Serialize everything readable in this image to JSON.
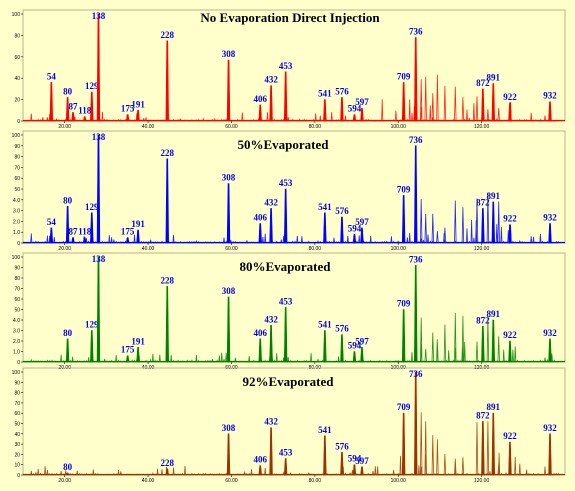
{
  "chart_data": {
    "type": "line",
    "panels": [
      {
        "title": "No Evaporation Direct Injection",
        "color": "#ff0000",
        "ylim": [
          0,
          100
        ],
        "yticks": [
          "0",
          "20",
          "40",
          "60",
          "80",
          "100"
        ],
        "peaks": [
          {
            "label": "54",
            "x": 16.8,
            "y": 36
          },
          {
            "label": "80",
            "x": 20.7,
            "y": 22
          },
          {
            "label": "87",
            "x": 22.0,
            "y": 8
          },
          {
            "label": "118",
            "x": 24.8,
            "y": 4
          },
          {
            "label": "129",
            "x": 26.5,
            "y": 27
          },
          {
            "label": "138",
            "x": 28.1,
            "y": 100
          },
          {
            "label": "175",
            "x": 35.1,
            "y": 6
          },
          {
            "label": "191",
            "x": 37.6,
            "y": 10
          },
          {
            "label": "228",
            "x": 44.6,
            "y": 75
          },
          {
            "label": "308",
            "x": 59.3,
            "y": 57
          },
          {
            "label": "406",
            "x": 66.9,
            "y": 15
          },
          {
            "label": "432",
            "x": 69.5,
            "y": 33
          },
          {
            "label": "453",
            "x": 73.0,
            "y": 46
          },
          {
            "label": "541",
            "x": 82.4,
            "y": 20
          },
          {
            "label": "576",
            "x": 86.5,
            "y": 22
          },
          {
            "label": "594",
            "x": 89.5,
            "y": 6
          },
          {
            "label": "597",
            "x": 91.3,
            "y": 12
          },
          {
            "label": "709",
            "x": 101.3,
            "y": 36
          },
          {
            "label": "736",
            "x": 104.2,
            "y": 78
          },
          {
            "label": "872",
            "x": 120.3,
            "y": 30
          },
          {
            "label": "891",
            "x": 122.8,
            "y": 35
          },
          {
            "label": "922",
            "x": 126.8,
            "y": 17
          },
          {
            "label": "932",
            "x": 136.4,
            "y": 18
          }
        ]
      },
      {
        "title": "50%Evaporated",
        "color": "#0000ff",
        "ylim": [
          0,
          100
        ],
        "yticks": [
          "0",
          "1.0",
          "2.0",
          "3.0",
          "4.0",
          "50",
          "60",
          "70",
          "80",
          "90",
          "100"
        ],
        "peaks": [
          {
            "label": "54",
            "x": 16.8,
            "y": 14
          },
          {
            "label": "80",
            "x": 20.7,
            "y": 34
          },
          {
            "label": "87",
            "x": 22.0,
            "y": 5
          },
          {
            "label": "118",
            "x": 24.8,
            "y": 5
          },
          {
            "label": "129",
            "x": 26.5,
            "y": 28
          },
          {
            "label": "138",
            "x": 28.1,
            "y": 100
          },
          {
            "label": "175",
            "x": 35.1,
            "y": 5
          },
          {
            "label": "191",
            "x": 37.6,
            "y": 12
          },
          {
            "label": "228",
            "x": 44.6,
            "y": 78
          },
          {
            "label": "308",
            "x": 59.3,
            "y": 55
          },
          {
            "label": "406",
            "x": 66.9,
            "y": 18
          },
          {
            "label": "432",
            "x": 69.5,
            "y": 32
          },
          {
            "label": "453",
            "x": 73.0,
            "y": 50
          },
          {
            "label": "541",
            "x": 82.4,
            "y": 28
          },
          {
            "label": "576",
            "x": 86.5,
            "y": 24
          },
          {
            "label": "594",
            "x": 89.5,
            "y": 8
          },
          {
            "label": "597",
            "x": 91.3,
            "y": 14
          },
          {
            "label": "709",
            "x": 101.3,
            "y": 44
          },
          {
            "label": "736",
            "x": 104.2,
            "y": 90
          },
          {
            "label": "872",
            "x": 120.3,
            "y": 32
          },
          {
            "label": "891",
            "x": 122.8,
            "y": 38
          },
          {
            "label": "922",
            "x": 126.8,
            "y": 17
          },
          {
            "label": "932",
            "x": 136.4,
            "y": 18
          }
        ]
      },
      {
        "title": "80%Evaporated",
        "color": "#008000",
        "ylim": [
          0,
          100
        ],
        "yticks": [
          "0",
          "1.0",
          "2.0",
          "3.0",
          "4.0",
          "50",
          "60",
          "70",
          "80",
          "90",
          "100"
        ],
        "peaks": [
          {
            "label": "80",
            "x": 20.7,
            "y": 22
          },
          {
            "label": "129",
            "x": 26.5,
            "y": 30
          },
          {
            "label": "138",
            "x": 28.1,
            "y": 100
          },
          {
            "label": "175",
            "x": 35.1,
            "y": 6
          },
          {
            "label": "191",
            "x": 37.6,
            "y": 14
          },
          {
            "label": "228",
            "x": 44.6,
            "y": 72
          },
          {
            "label": "308",
            "x": 59.3,
            "y": 62
          },
          {
            "label": "406",
            "x": 66.9,
            "y": 22
          },
          {
            "label": "432",
            "x": 69.5,
            "y": 35
          },
          {
            "label": "453",
            "x": 73.0,
            "y": 52
          },
          {
            "label": "541",
            "x": 82.4,
            "y": 30
          },
          {
            "label": "576",
            "x": 86.5,
            "y": 26
          },
          {
            "label": "594",
            "x": 89.5,
            "y": 10
          },
          {
            "label": "597",
            "x": 91.3,
            "y": 14
          },
          {
            "label": "709",
            "x": 101.3,
            "y": 50
          },
          {
            "label": "736",
            "x": 104.2,
            "y": 92
          },
          {
            "label": "872",
            "x": 120.3,
            "y": 34
          },
          {
            "label": "891",
            "x": 122.8,
            "y": 40
          },
          {
            "label": "922",
            "x": 126.8,
            "y": 20
          },
          {
            "label": "932",
            "x": 136.4,
            "y": 22
          }
        ]
      },
      {
        "title": "92%Evaporated",
        "color": "#993300",
        "ylim": [
          0,
          100
        ],
        "yticks": [
          "0",
          "10",
          "20",
          "30",
          "40",
          "50",
          "60",
          "70",
          "80",
          "90",
          "100"
        ],
        "peaks": [
          {
            "label": "80",
            "x": 20.7,
            "y": 2
          },
          {
            "label": "228",
            "x": 44.6,
            "y": 6
          },
          {
            "label": "308",
            "x": 59.3,
            "y": 40
          },
          {
            "label": "406",
            "x": 66.9,
            "y": 9
          },
          {
            "label": "432",
            "x": 69.5,
            "y": 46
          },
          {
            "label": "453",
            "x": 73.0,
            "y": 16
          },
          {
            "label": "541",
            "x": 82.4,
            "y": 38
          },
          {
            "label": "576",
            "x": 86.5,
            "y": 22
          },
          {
            "label": "594",
            "x": 89.5,
            "y": 10
          },
          {
            "label": "597",
            "x": 91.3,
            "y": 8
          },
          {
            "label": "709",
            "x": 101.3,
            "y": 60
          },
          {
            "label": "736",
            "x": 104.2,
            "y": 100
          },
          {
            "label": "872",
            "x": 120.3,
            "y": 52
          },
          {
            "label": "891",
            "x": 122.8,
            "y": 60
          },
          {
            "label": "922",
            "x": 126.8,
            "y": 32
          },
          {
            "label": "932",
            "x": 136.4,
            "y": 40
          }
        ]
      }
    ],
    "xlim": [
      10,
      140
    ],
    "xticks": [
      "20.00",
      "40.00",
      "60.00",
      "80.00",
      "100.00",
      "120.00"
    ],
    "grid": false
  }
}
